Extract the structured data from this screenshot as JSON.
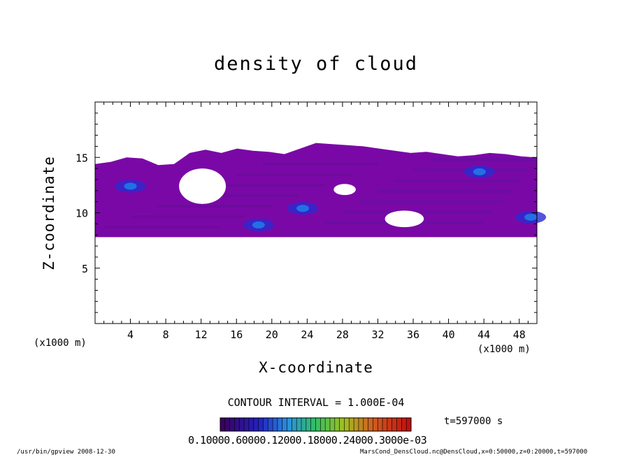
{
  "chart_data": {
    "type": "heatmap",
    "title": "density of cloud",
    "xlabel": "X-coordinate",
    "ylabel": "Z-coordinate",
    "x_unit": "(x1000 m)",
    "xlim": [
      0,
      50
    ],
    "ylim": [
      0,
      20
    ],
    "xticks": [
      4,
      8,
      12,
      16,
      20,
      24,
      28,
      32,
      36,
      40,
      44,
      48
    ],
    "yticks": [
      5,
      10,
      15
    ],
    "contour_interval": "CONTOUR INTERVAL = 1.000E-04",
    "time_label": "t=597000 s",
    "colorbar_labels": "0.10000.60000.12000.18000.24000.3000e-03",
    "cloud_layer": {
      "z_bottom": 7.8,
      "z_top": [
        14.4,
        14.6,
        15.0,
        14.9,
        14.3,
        14.4,
        15.4,
        15.7,
        15.4,
        15.8,
        15.6,
        15.5,
        15.3,
        15.8,
        16.3,
        16.2,
        16.1,
        16.0,
        15.8,
        15.6,
        15.4,
        15.5,
        15.3,
        15.1,
        15.2,
        15.4,
        15.3,
        15.1,
        15.0
      ],
      "fill_color": "#7a08a6",
      "holes": [
        {
          "x": [
            9.5,
            14.8
          ],
          "z": [
            10.8,
            14.0
          ]
        },
        {
          "x": [
            27.0,
            29.5
          ],
          "z": [
            11.6,
            12.6
          ]
        },
        {
          "x": [
            32.8,
            37.2
          ],
          "z": [
            8.7,
            10.2
          ]
        }
      ],
      "dense_spots": [
        {
          "x": 4.0,
          "z": 12.4
        },
        {
          "x": 18.5,
          "z": 8.9
        },
        {
          "x": 23.5,
          "z": 10.4
        },
        {
          "x": 43.5,
          "z": 13.7
        },
        {
          "x": 49.3,
          "z": 9.6
        }
      ]
    }
  },
  "footer": {
    "left": "/usr/bin/gpview   2008-12-30",
    "right": "MarsCond_DensCloud.nc@DensCloud,x=0:50000,z=0:20000,t=597000"
  }
}
